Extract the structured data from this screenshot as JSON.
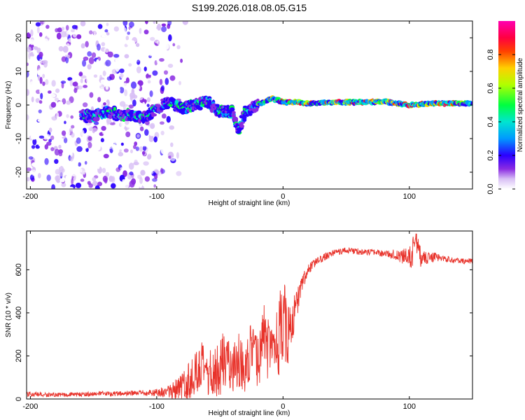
{
  "title": "S199.2026.018.08.05.G15",
  "chart_data": [
    {
      "type": "heatmap",
      "name": "spectrogram",
      "xlabel": "Height of straight line (km)",
      "ylabel": "Frequency (Hz)",
      "xlim": [
        -203,
        150
      ],
      "ylim": [
        -25,
        25
      ],
      "xticks": [
        -200,
        -100,
        0,
        100
      ],
      "xtick_labels": [
        "-200",
        "-100",
        "0",
        "100"
      ],
      "yticks": [
        -20,
        -10,
        0,
        10,
        20
      ],
      "ytick_labels": [
        "-20",
        "-10",
        "0",
        "10",
        "20"
      ],
      "ridge": {
        "x": [
          -160,
          -150,
          -140,
          -130,
          -120,
          -110,
          -100,
          -90,
          -80,
          -70,
          -60,
          -50,
          -40,
          -35,
          -30,
          -20,
          -10,
          0,
          20,
          40,
          60,
          80,
          100,
          120,
          150
        ],
        "freq": [
          -3,
          -3.5,
          -2,
          -3,
          -3,
          -4,
          -1,
          1,
          -1,
          0,
          1,
          -2,
          -2,
          -8,
          -2,
          0,
          2,
          1,
          0.5,
          0.8,
          0.8,
          1,
          0,
          0.5,
          0.5
        ]
      },
      "colorbar": {
        "label": "Normalized spectral amplitude",
        "range": [
          0,
          1
        ],
        "ticks": [
          0.0,
          0.2,
          0.4,
          0.6,
          0.8
        ],
        "tick_labels": [
          "0.0",
          "0.2",
          "0.4",
          "0.6",
          "0.8"
        ]
      }
    },
    {
      "type": "line",
      "name": "snr",
      "xlabel": "Height of straight line (km)",
      "ylabel": "SNR (10 * v/v)",
      "xlim": [
        -203,
        150
      ],
      "ylim": [
        0,
        780
      ],
      "xticks": [
        -200,
        -100,
        0,
        100
      ],
      "xtick_labels": [
        "-200",
        "-100",
        "0",
        "100"
      ],
      "yticks": [
        0,
        200,
        400,
        600
      ],
      "ytick_labels": [
        "0",
        "200",
        "400",
        "600"
      ],
      "color": "#e8332b",
      "x": [
        -203,
        -190,
        -175,
        -160,
        -145,
        -130,
        -115,
        -100,
        -90,
        -85,
        -80,
        -75,
        -70,
        -65,
        -60,
        -55,
        -50,
        -45,
        -40,
        -35,
        -30,
        -25,
        -20,
        -15,
        -10,
        -5,
        0,
        5,
        10,
        15,
        20,
        25,
        30,
        40,
        50,
        60,
        70,
        80,
        90,
        100,
        105,
        110,
        120,
        130,
        140,
        150
      ],
      "y": [
        22,
        20,
        20,
        22,
        24,
        25,
        27,
        30,
        35,
        40,
        50,
        80,
        120,
        150,
        110,
        120,
        150,
        200,
        140,
        190,
        120,
        230,
        160,
        300,
        190,
        260,
        350,
        300,
        420,
        540,
        600,
        630,
        650,
        680,
        690,
        685,
        680,
        675,
        670,
        650,
        710,
        650,
        660,
        650,
        640,
        640
      ],
      "amp": [
        12,
        10,
        10,
        10,
        12,
        12,
        12,
        18,
        30,
        50,
        70,
        90,
        110,
        120,
        110,
        120,
        140,
        150,
        110,
        140,
        100,
        150,
        120,
        160,
        140,
        150,
        250,
        120,
        80,
        40,
        25,
        20,
        18,
        15,
        15,
        15,
        15,
        15,
        25,
        50,
        80,
        40,
        20,
        15,
        12,
        12
      ]
    }
  ]
}
